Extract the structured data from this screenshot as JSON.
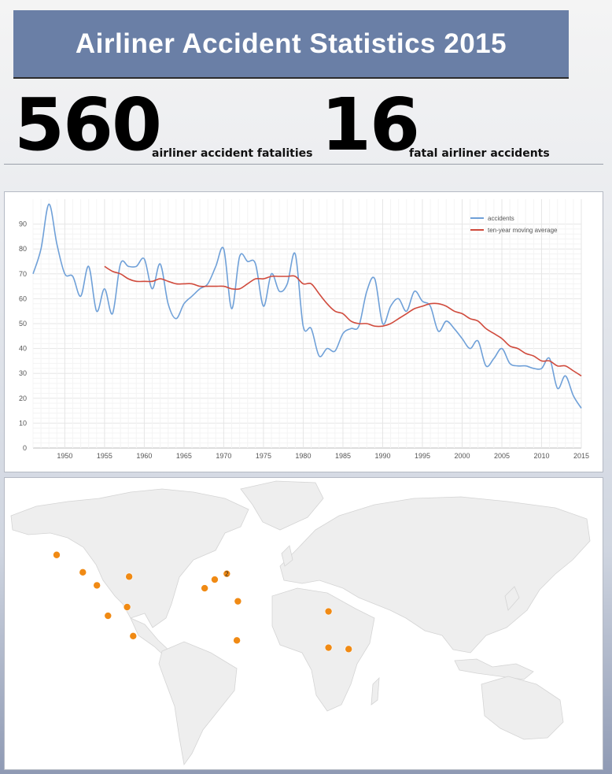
{
  "banner": {
    "title": "Airliner Accident Statistics  2015"
  },
  "stats": [
    {
      "value": "560",
      "label": "airliner accident fatalities"
    },
    {
      "value": "16",
      "label": "fatal airliner accidents"
    }
  ],
  "chart_data": {
    "type": "line",
    "title": "",
    "xlabel": "",
    "ylabel": "",
    "xlim": [
      1946,
      2015
    ],
    "ylim": [
      0,
      100
    ],
    "x_ticks": [
      1950,
      1955,
      1960,
      1965,
      1970,
      1975,
      1980,
      1985,
      1990,
      1995,
      2000,
      2005,
      2010,
      2015
    ],
    "y_ticks": [
      0,
      10,
      20,
      30,
      40,
      50,
      60,
      70,
      80,
      90
    ],
    "grid": true,
    "legend_position": "top-right",
    "series": [
      {
        "name": "accidents",
        "color": "#6fa0d8",
        "x": [
          1946,
          1947,
          1948,
          1949,
          1950,
          1951,
          1952,
          1953,
          1954,
          1955,
          1956,
          1957,
          1958,
          1959,
          1960,
          1961,
          1962,
          1963,
          1964,
          1965,
          1966,
          1967,
          1968,
          1969,
          1970,
          1971,
          1972,
          1973,
          1974,
          1975,
          1976,
          1977,
          1978,
          1979,
          1980,
          1981,
          1982,
          1983,
          1984,
          1985,
          1986,
          1987,
          1988,
          1989,
          1990,
          1991,
          1992,
          1993,
          1994,
          1995,
          1996,
          1997,
          1998,
          1999,
          2000,
          2001,
          2002,
          2003,
          2004,
          2005,
          2006,
          2007,
          2008,
          2009,
          2010,
          2011,
          2012,
          2013,
          2014,
          2015
        ],
        "y": [
          70,
          80,
          98,
          82,
          70,
          69,
          61,
          73,
          55,
          64,
          54,
          74,
          73,
          73,
          76,
          64,
          74,
          58,
          52,
          58,
          61,
          64,
          66,
          73,
          80,
          56,
          77,
          75,
          74,
          57,
          70,
          63,
          66,
          78,
          49,
          48,
          37,
          40,
          39,
          46,
          48,
          49,
          63,
          68,
          50,
          57,
          60,
          55,
          63,
          59,
          57,
          47,
          51,
          48,
          44,
          40,
          43,
          33,
          36,
          40,
          34,
          33,
          33,
          32,
          32,
          36,
          24,
          29,
          21,
          16
        ]
      },
      {
        "name": "ten-year moving average",
        "color": "#d04a3c",
        "x": [
          1955,
          1956,
          1957,
          1958,
          1959,
          1960,
          1961,
          1962,
          1963,
          1964,
          1965,
          1966,
          1967,
          1968,
          1969,
          1970,
          1971,
          1972,
          1973,
          1974,
          1975,
          1976,
          1977,
          1978,
          1979,
          1980,
          1981,
          1982,
          1983,
          1984,
          1985,
          1986,
          1987,
          1988,
          1989,
          1990,
          1991,
          1992,
          1993,
          1994,
          1995,
          1996,
          1997,
          1998,
          1999,
          2000,
          2001,
          2002,
          2003,
          2004,
          2005,
          2006,
          2007,
          2008,
          2009,
          2010,
          2011,
          2012,
          2013,
          2014,
          2015
        ],
        "y": [
          73,
          71,
          70,
          68,
          67,
          67,
          67,
          68,
          67,
          66,
          66,
          66,
          65,
          65,
          65,
          65,
          64,
          64,
          66,
          68,
          68,
          69,
          69,
          69,
          69,
          66,
          66,
          62,
          58,
          55,
          54,
          51,
          50,
          50,
          49,
          49,
          50,
          52,
          54,
          56,
          57,
          58,
          58,
          57,
          55,
          54,
          52,
          51,
          48,
          46,
          44,
          41,
          40,
          38,
          37,
          35,
          35,
          33,
          33,
          31,
          29
        ]
      }
    ]
  },
  "map": {
    "markers": [
      {
        "lat": 61,
        "lon": -150,
        "label": ""
      },
      {
        "lat": 49,
        "lon": -124,
        "label": ""
      },
      {
        "lat": 40,
        "lon": -110,
        "label": ""
      },
      {
        "lat": 46,
        "lon": -78,
        "label": ""
      },
      {
        "lat": 19,
        "lon": -99,
        "label": ""
      },
      {
        "lat": 25,
        "lon": -80,
        "label": ""
      },
      {
        "lat": 5,
        "lon": -74,
        "label": ""
      },
      {
        "lat": 38,
        "lon": -3,
        "label": ""
      },
      {
        "lat": 44,
        "lon": 7,
        "label": ""
      },
      {
        "lat": 48,
        "lon": 19,
        "label": "2"
      },
      {
        "lat": 29,
        "lon": 30,
        "label": ""
      },
      {
        "lat": 2,
        "lon": 29,
        "label": ""
      },
      {
        "lat": 22,
        "lon": 120,
        "label": ""
      },
      {
        "lat": -3,
        "lon": 120,
        "label": ""
      },
      {
        "lat": -4,
        "lon": 140,
        "label": ""
      }
    ],
    "marker_color": "#f08a14"
  }
}
